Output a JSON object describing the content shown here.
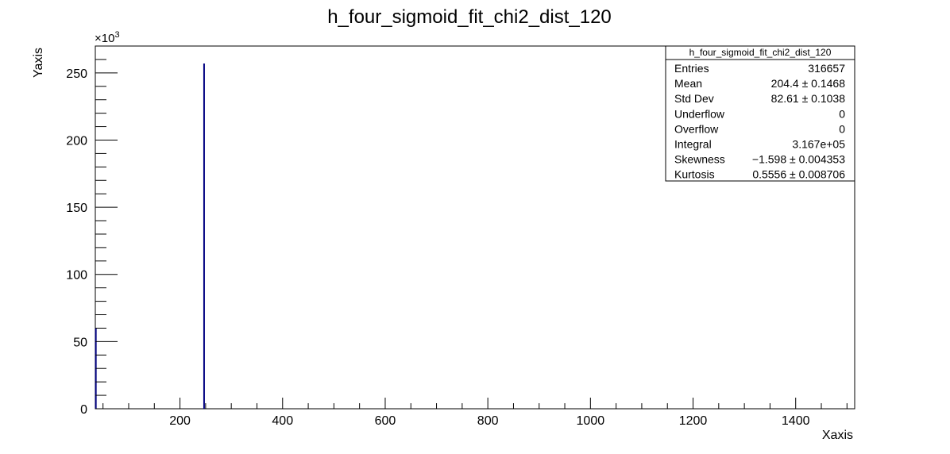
{
  "chart_data": {
    "type": "bar",
    "title": "h_four_sigmoid_fit_chi2_dist_120",
    "xlabel": "Xaxis",
    "ylabel": "Yaxis",
    "y_multiplier": "×10",
    "y_multiplier_exp": "3",
    "xlim": [
      35,
      1515
    ],
    "ylim": [
      0,
      270
    ],
    "x_ticks": [
      200,
      400,
      600,
      800,
      1000,
      1200,
      1400
    ],
    "y_ticks": [
      0,
      50,
      100,
      150,
      200,
      250
    ],
    "bars": [
      {
        "x": 36,
        "value": 60
      },
      {
        "x": 247,
        "value": 257
      }
    ],
    "bar_color": "#000080",
    "grid": false,
    "legend": "top-right",
    "stats": {
      "header": "h_four_sigmoid_fit_chi2_dist_120",
      "rows": [
        {
          "label": "Entries",
          "value": "316657"
        },
        {
          "label": "Mean",
          "value": "204.4 ± 0.1468"
        },
        {
          "label": "Std Dev",
          "value": "82.61 ± 0.1038"
        },
        {
          "label": "Underflow",
          "value": "0"
        },
        {
          "label": "Overflow",
          "value": "0"
        },
        {
          "label": "Integral",
          "value": "3.167e+05"
        },
        {
          "label": "Skewness",
          "value": "−1.598 ± 0.004353"
        },
        {
          "label": "Kurtosis",
          "value": "0.5556 ± 0.008706"
        }
      ]
    }
  }
}
